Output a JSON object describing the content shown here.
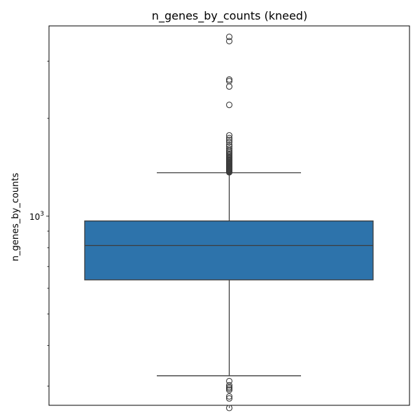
{
  "chart_data": {
    "type": "boxplot",
    "title": "n_genes_by_counts (kneed)",
    "xlabel": "",
    "ylabel": "n_genes_by_counts",
    "y_scale": "log",
    "y_tick_label_major": "10^3",
    "ylim": [
      262,
      3850
    ],
    "grid": false,
    "box_color": "#2d73ab",
    "line_color": "#3d3d3d",
    "box": {
      "q1": 637,
      "median": 813,
      "q3": 967,
      "whisker_low": 323,
      "whisker_high": 1361
    },
    "outliers_high": [
      1365,
      1369,
      1374,
      1379,
      1384,
      1390,
      1395,
      1401,
      1407,
      1413,
      1420,
      1427,
      1434,
      1441,
      1449,
      1457,
      1465,
      1473,
      1482,
      1491,
      1500,
      1510,
      1520,
      1531,
      1545,
      1560,
      1575,
      1590,
      1612,
      1638,
      1658,
      1690,
      1716,
      1740,
      1773,
      2200,
      2506,
      2604,
      2634,
      3455,
      3561
    ],
    "outliers_low": [
      311,
      302,
      298,
      295,
      292,
      279,
      275,
      257
    ]
  }
}
